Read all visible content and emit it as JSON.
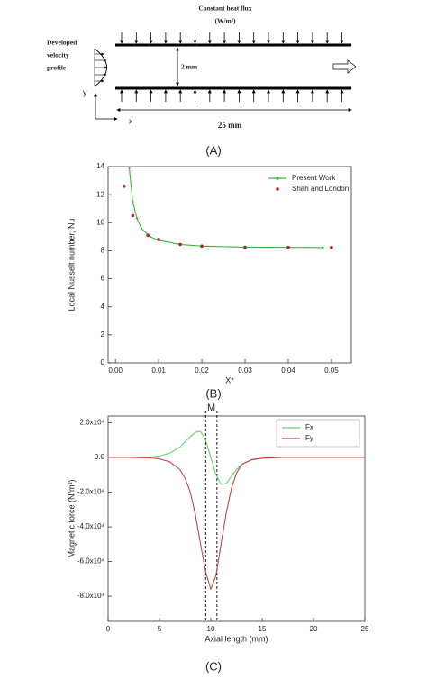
{
  "diagram": {
    "heat_flux": "Constant heat flux",
    "heat_flux_unit": "(W/m²)",
    "profile_lines": [
      "Developed",
      "velocity",
      "profile"
    ],
    "gap": "2 mm",
    "y_axis": "y",
    "x_axis": "x",
    "length": "25 mm"
  },
  "panel_labels": [
    "(A)",
    "(B)",
    "(C)"
  ],
  "chart_data": [
    {
      "type": "line",
      "x_label": "X*",
      "y_label": "Local Nusselt number, Nu",
      "legend": "top-right",
      "xlim": [
        -0.0017,
        0.0546
      ],
      "ylim": [
        0,
        14
      ],
      "xticks": [
        {
          "value": 0,
          "label": "0.00"
        },
        {
          "value": 0.01,
          "label": "0.01"
        },
        {
          "value": 0.02,
          "label": "0.02"
        },
        {
          "value": 0.03,
          "label": "0.03"
        },
        {
          "value": 0.04,
          "label": "0.04"
        },
        {
          "value": 0.05,
          "label": "0.05"
        }
      ],
      "yticks": [
        0,
        2,
        4,
        6,
        8,
        10,
        12,
        14
      ],
      "series": [
        {
          "name": "Present Work",
          "color": "#3cb43c",
          "mode": "lines+markers",
          "x": [
            0.0032,
            0.004,
            0.005,
            0.006,
            0.008,
            0.01,
            0.015,
            0.02,
            0.03,
            0.04,
            0.048
          ],
          "values": [
            13.9,
            11.5,
            10.3,
            9.6,
            9.0,
            8.75,
            8.45,
            8.33,
            8.26,
            8.24,
            8.23
          ]
        },
        {
          "name": "Shah and London",
          "color": "#b22222",
          "mode": "markers",
          "x": [
            0.002,
            0.004,
            0.0075,
            0.01,
            0.015,
            0.02,
            0.03,
            0.04,
            0.05
          ],
          "values": [
            12.6,
            10.5,
            9.1,
            8.8,
            8.45,
            8.33,
            8.25,
            8.24,
            8.23
          ]
        }
      ]
    },
    {
      "type": "line",
      "x_label": "Axial length (mm)",
      "y_label": "Magnetic force (N/m³)",
      "legend": "top-right",
      "xlim": [
        0,
        25
      ],
      "ylim": [
        -94500,
        23900
      ],
      "xticks": [
        0,
        5,
        10,
        15,
        20,
        25
      ],
      "yticks": [
        {
          "value": 20000,
          "label": "2.0x10⁴"
        },
        {
          "value": 0,
          "label": "0.0"
        },
        {
          "value": -20000,
          "label": "-2.0x10⁴"
        },
        {
          "value": -40000,
          "label": "-4.0x10⁴"
        },
        {
          "value": -60000,
          "label": "-6.0x10⁴"
        },
        {
          "value": -80000,
          "label": "-8.0x10⁴"
        }
      ],
      "annotation": {
        "text": "M",
        "x": [
          9.5,
          10.6
        ]
      },
      "series": [
        {
          "name": "Fx",
          "color": "#6fcf6f",
          "mode": "lines",
          "x": [
            0,
            2,
            4,
            5,
            6,
            7,
            7.5,
            8,
            8.5,
            9,
            9.5,
            10,
            10.5,
            11,
            11.5,
            12,
            12.5,
            13,
            14,
            15,
            17,
            20,
            25
          ],
          "values": [
            0,
            0,
            200,
            800,
            2500,
            6000,
            9000,
            12000,
            14500,
            15000,
            10000,
            0,
            -10000,
            -15500,
            -15000,
            -11000,
            -7000,
            -4000,
            -1500,
            -500,
            0,
            0,
            0
          ]
        },
        {
          "name": "Fy",
          "color": "#c04848",
          "mode": "lines",
          "x": [
            0,
            2,
            4,
            5,
            6,
            7,
            7.5,
            8,
            8.5,
            9,
            9.5,
            10,
            10.5,
            11,
            11.5,
            12,
            12.5,
            13,
            14,
            15,
            17,
            20,
            25
          ],
          "values": [
            0,
            0,
            -200,
            -800,
            -2500,
            -7000,
            -12000,
            -20000,
            -33000,
            -50000,
            -66000,
            -76000,
            -68000,
            -50000,
            -32000,
            -18000,
            -9000,
            -4000,
            -1200,
            -400,
            0,
            0,
            0
          ]
        }
      ]
    }
  ]
}
